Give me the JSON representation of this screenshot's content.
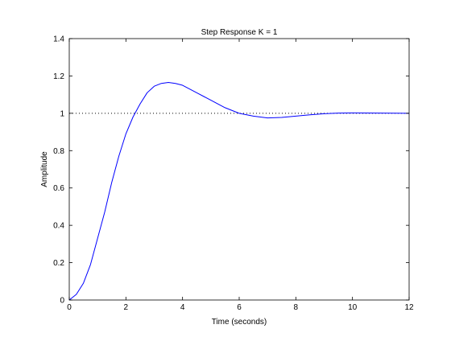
{
  "chart_data": {
    "type": "line",
    "title": "Step Response K = 1",
    "xlabel": "Time (seconds)",
    "ylabel": "Amplitude",
    "xlim": [
      0,
      12
    ],
    "ylim": [
      0,
      1.4
    ],
    "x_ticks": [
      "0",
      "2",
      "4",
      "6",
      "8",
      "10",
      "12"
    ],
    "y_ticks": [
      "0",
      "0.2",
      "0.4",
      "0.6",
      "0.8",
      "1",
      "1.2",
      "1.4"
    ],
    "grid": false,
    "series": [
      {
        "color": "#0000ff",
        "x": [
          0,
          0.25,
          0.5,
          0.75,
          1.0,
          1.25,
          1.5,
          1.75,
          2.0,
          2.25,
          2.5,
          2.75,
          3.0,
          3.25,
          3.5,
          3.75,
          4.0,
          4.5,
          5.0,
          5.5,
          6.0,
          6.5,
          7.0,
          7.5,
          8.0,
          8.5,
          9.0,
          9.5,
          10.0,
          11.0,
          12.0
        ],
        "y": [
          0,
          0.03,
          0.09,
          0.19,
          0.33,
          0.47,
          0.63,
          0.77,
          0.89,
          0.98,
          1.05,
          1.11,
          1.145,
          1.16,
          1.165,
          1.16,
          1.15,
          1.11,
          1.07,
          1.03,
          1.0,
          0.985,
          0.975,
          0.978,
          0.985,
          0.992,
          0.998,
          1.001,
          1.002,
          1.001,
          1.0
        ]
      }
    ],
    "reference_lines": [
      {
        "axis": "y",
        "value": 1,
        "style": "dotted",
        "color": "#000000"
      }
    ]
  }
}
